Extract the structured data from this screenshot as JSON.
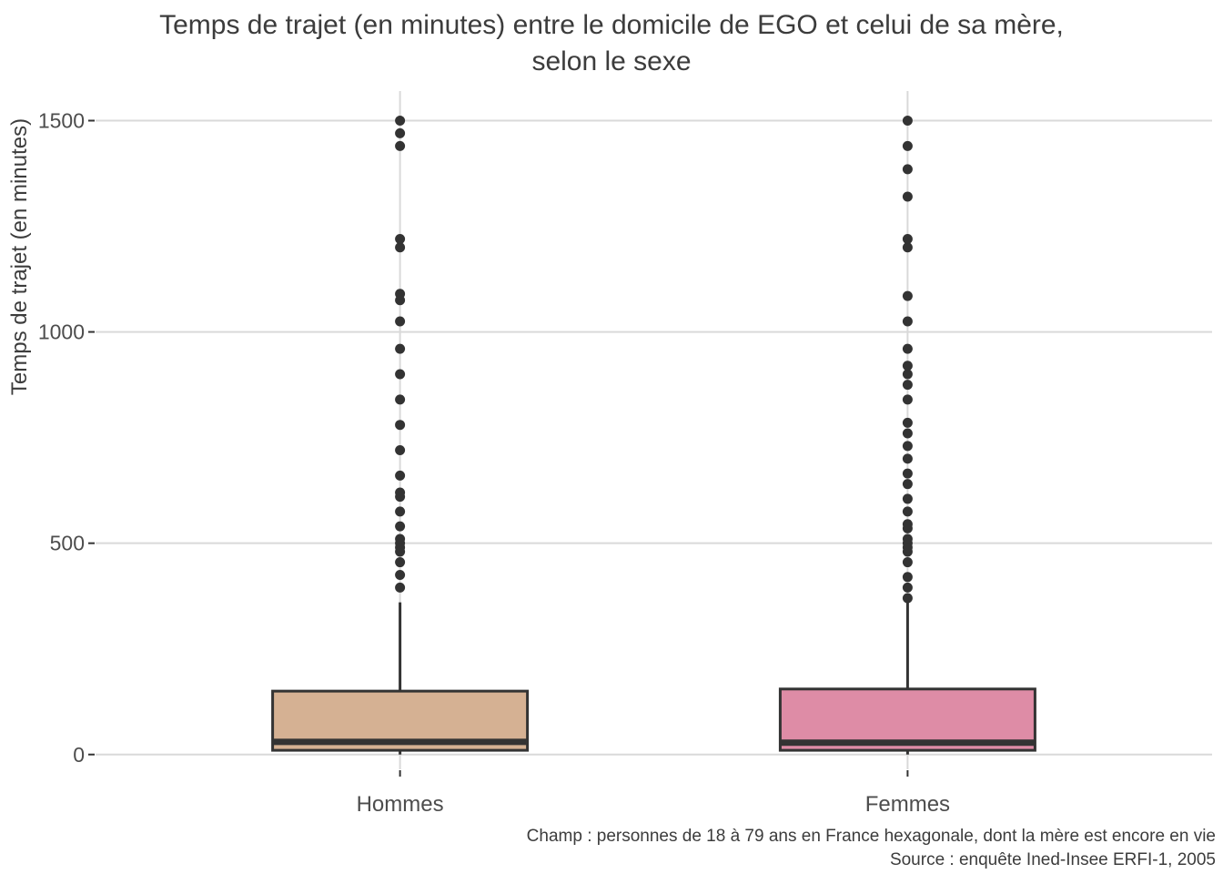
{
  "chart_data": {
    "type": "boxplot",
    "title": "Temps de trajet (en minutes) entre le domicile de EGO et celui de sa mère, selon le sexe",
    "title_line1": "Temps de trajet (en minutes) entre le domicile de EGO et celui de sa mère,",
    "title_line2": "selon le sexe",
    "ylabel": "Temps de trajet (en minutes)",
    "xlabel": "",
    "caption_champ": "Champ : personnes de 18 à 79 ans en France hexagonale, dont la mère est encore en vie",
    "caption_source": "Source : enquête Ined-Insee ERFI-1, 2005",
    "categories": [
      "Hommes",
      "Femmes"
    ],
    "yticks": [
      0,
      500,
      1000,
      1500
    ],
    "ylim": [
      -35,
      1570
    ],
    "legend": "none",
    "grid": {
      "horizontal_major": true,
      "vertical_category": true
    },
    "series": [
      {
        "name": "Hommes",
        "fill": "#D5B193",
        "whisker_low": 0,
        "q1": 10,
        "median": 30,
        "q3": 150,
        "whisker_high": 360,
        "outliers": [
          395,
          425,
          455,
          480,
          490,
          500,
          510,
          540,
          575,
          610,
          620,
          660,
          720,
          780,
          840,
          900,
          960,
          1025,
          1075,
          1090,
          1200,
          1220,
          1440,
          1470,
          1500
        ]
      },
      {
        "name": "Femmes",
        "fill": "#DE8CA6",
        "whisker_low": 0,
        "q1": 10,
        "median": 28,
        "q3": 155,
        "whisker_high": 360,
        "outliers": [
          370,
          395,
          420,
          455,
          480,
          490,
          500,
          510,
          535,
          545,
          575,
          605,
          640,
          665,
          700,
          730,
          760,
          785,
          840,
          875,
          900,
          920,
          960,
          1025,
          1085,
          1200,
          1220,
          1320,
          1385,
          1440,
          1500
        ]
      }
    ]
  },
  "colors": {
    "box_stroke": "#333333",
    "outlier_point": "#333333",
    "gridline": "#d9d9d9",
    "tick_mark": "#333333",
    "tick_label": "#4d4d4d",
    "title_text": "#3c3c3c",
    "background": "#ffffff"
  }
}
